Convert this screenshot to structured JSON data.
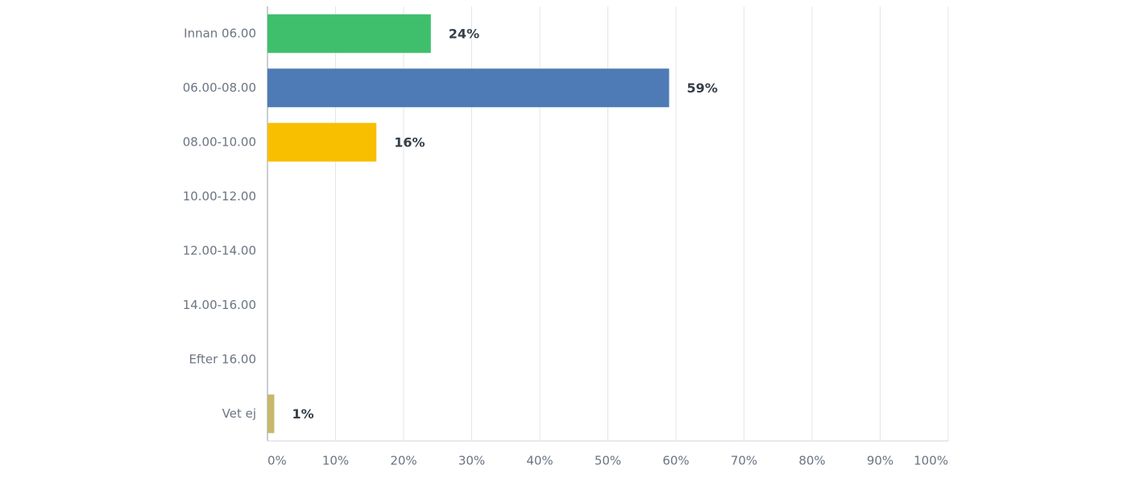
{
  "chart_data": {
    "type": "hbar",
    "categories": [
      "Innan 06.00",
      "06.00-08.00",
      "08.00-10.00",
      "10.00-12.00",
      "12.00-14.00",
      "14.00-16.00",
      "Efter 16.00",
      "Vet ej"
    ],
    "values": [
      24,
      59,
      16,
      0,
      0,
      0,
      0,
      1
    ],
    "value_labels": [
      "24%",
      "59%",
      "16%",
      null,
      null,
      null,
      null,
      "1%"
    ],
    "colors": [
      "#3fbf6c",
      "#4e7bb5",
      "#f8bf00",
      null,
      null,
      null,
      null,
      "#c8b86c"
    ],
    "xlim": [
      0,
      100
    ],
    "xticks": [
      {
        "value": 0,
        "label": "0%"
      },
      {
        "value": 10,
        "label": "10%"
      },
      {
        "value": 20,
        "label": "20%"
      },
      {
        "value": 30,
        "label": "30%"
      },
      {
        "value": 40,
        "label": "40%"
      },
      {
        "value": 50,
        "label": "50%"
      },
      {
        "value": 60,
        "label": "60%"
      },
      {
        "value": 70,
        "label": "70%"
      },
      {
        "value": 80,
        "label": "80%"
      },
      {
        "value": 90,
        "label": "90%"
      },
      {
        "value": 100,
        "label": "100%"
      }
    ],
    "grid": true
  }
}
